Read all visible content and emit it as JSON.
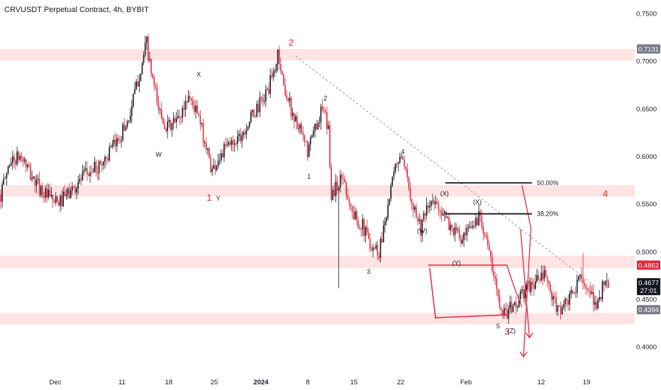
{
  "header": {
    "title": "CRVUSDT Perpetual Contract, 4h, BYBIT"
  },
  "colors": {
    "up": "#131722",
    "down": "#e0283a",
    "zone": "#fde3e4",
    "annotation": "#e0283a",
    "grid_text": "#131722"
  },
  "chart_data": {
    "type": "candlestick",
    "title": "CRVUSDT Perpetual Contract, 4h, BYBIT",
    "ylim": [
      0.37,
      0.757
    ],
    "y_ticks": [
      "0.7500",
      "0.7000",
      "0.6500",
      "0.6000",
      "0.5500",
      "0.5000",
      "0.4500",
      "0.4000"
    ],
    "y_tick_values": [
      0.75,
      0.7,
      0.65,
      0.6,
      0.55,
      0.5,
      0.45,
      0.4
    ],
    "x_ticks": [
      "Dec",
      "11",
      "18",
      "25",
      "2024",
      "8",
      "15",
      "22",
      "Feb",
      "12",
      "19"
    ],
    "price_path": [
      [
        0,
        0.56
      ],
      [
        6,
        0.595
      ],
      [
        14,
        0.6
      ],
      [
        22,
        0.575
      ],
      [
        30,
        0.56
      ],
      [
        38,
        0.55
      ],
      [
        48,
        0.565
      ],
      [
        56,
        0.58
      ],
      [
        66,
        0.59
      ],
      [
        76,
        0.61
      ],
      [
        86,
        0.64
      ],
      [
        92,
        0.68
      ],
      [
        96,
        0.705
      ],
      [
        98,
        0.72
      ],
      [
        100,
        0.695
      ],
      [
        106,
        0.65
      ],
      [
        112,
        0.63
      ],
      [
        120,
        0.64
      ],
      [
        126,
        0.665
      ],
      [
        132,
        0.645
      ],
      [
        138,
        0.61
      ],
      [
        142,
        0.585
      ],
      [
        146,
        0.598
      ],
      [
        152,
        0.61
      ],
      [
        162,
        0.625
      ],
      [
        170,
        0.645
      ],
      [
        178,
        0.665
      ],
      [
        184,
        0.69
      ],
      [
        186,
        0.71
      ],
      [
        190,
        0.675
      ],
      [
        196,
        0.645
      ],
      [
        202,
        0.622
      ],
      [
        206,
        0.605
      ],
      [
        212,
        0.635
      ],
      [
        216,
        0.65
      ],
      [
        220,
        0.628
      ],
      [
        222,
        0.56
      ],
      [
        230,
        0.58
      ],
      [
        236,
        0.54
      ],
      [
        242,
        0.53
      ],
      [
        248,
        0.51
      ],
      [
        254,
        0.5
      ],
      [
        258,
        0.535
      ],
      [
        262,
        0.565
      ],
      [
        266,
        0.595
      ],
      [
        268,
        0.6
      ],
      [
        272,
        0.58
      ],
      [
        278,
        0.545
      ],
      [
        282,
        0.525
      ],
      [
        288,
        0.55
      ],
      [
        294,
        0.55
      ],
      [
        300,
        0.53
      ],
      [
        306,
        0.52
      ],
      [
        310,
        0.51
      ],
      [
        316,
        0.525
      ],
      [
        322,
        0.54
      ],
      [
        326,
        0.515
      ],
      [
        330,
        0.48
      ],
      [
        334,
        0.455
      ],
      [
        338,
        0.435
      ],
      [
        346,
        0.445
      ],
      [
        352,
        0.46
      ],
      [
        360,
        0.47
      ],
      [
        366,
        0.475
      ],
      [
        370,
        0.45
      ],
      [
        374,
        0.44
      ],
      [
        380,
        0.445
      ],
      [
        386,
        0.46
      ],
      [
        390,
        0.48
      ],
      [
        394,
        0.455
      ],
      [
        400,
        0.445
      ],
      [
        406,
        0.47
      ],
      [
        408,
        0.468
      ]
    ],
    "spikes": [
      {
        "i": 227,
        "low": 0.462
      },
      {
        "i": 98,
        "high": 0.7225
      },
      {
        "i": 186,
        "high": 0.71
      },
      {
        "i": 268,
        "high": 0.604
      },
      {
        "i": 391,
        "high": 0.499
      }
    ],
    "zones": [
      {
        "y1": 0.701,
        "y2": 0.7131
      },
      {
        "y1": 0.558,
        "y2": 0.57
      },
      {
        "y1": 0.483,
        "y2": 0.496
      },
      {
        "y1": 0.424,
        "y2": 0.436
      }
    ],
    "price_tags": [
      {
        "value": "0.7131",
        "y": 0.7131,
        "bg": "#787b86"
      },
      {
        "value": "0.4862",
        "y": 0.4862,
        "bg": "#e0283a"
      },
      {
        "value": "0.4677",
        "sub": "27:01",
        "y": 0.4677,
        "bg": "#131722"
      },
      {
        "value": "0.4394",
        "y": 0.4394,
        "bg": "#787b86"
      }
    ],
    "fib_levels": [
      {
        "label": "50.00%",
        "y": 0.5725
      },
      {
        "label": "38.20%",
        "y": 0.54
      }
    ],
    "trendline": {
      "from": [
        0.7055,
        198
      ],
      "to": [
        0.463,
        400
      ]
    },
    "wave_labels": [
      {
        "text": "2",
        "i": 195,
        "y": 0.7165,
        "style": "red"
      },
      {
        "text": "1",
        "i": 140,
        "y": 0.554,
        "style": "red"
      },
      {
        "text": "3",
        "i": 340,
        "y": 0.413,
        "style": "red"
      },
      {
        "text": "4",
        "i": 406,
        "y": 0.558,
        "style": "red"
      },
      {
        "text": "X",
        "i": 133,
        "y": 0.684,
        "style": "black"
      },
      {
        "text": "W",
        "i": 106,
        "y": 0.6,
        "style": "black"
      },
      {
        "text": "Y",
        "i": 146,
        "y": 0.554,
        "style": "black"
      },
      {
        "text": "2",
        "i": 218,
        "y": 0.659,
        "style": "black"
      },
      {
        "text": "1",
        "i": 207,
        "y": 0.577,
        "style": "black"
      },
      {
        "text": "3",
        "i": 247,
        "y": 0.477,
        "style": "black"
      },
      {
        "text": "4",
        "i": 270,
        "y": 0.603,
        "style": "black"
      },
      {
        "text": "(X)",
        "i": 298,
        "y": 0.559,
        "style": "black"
      },
      {
        "text": "(W)",
        "i": 283,
        "y": 0.52,
        "style": "black"
      },
      {
        "text": "(X)",
        "i": 320,
        "y": 0.55,
        "style": "black"
      },
      {
        "text": "(Y)",
        "i": 306,
        "y": 0.486,
        "style": "black"
      },
      {
        "text": "5",
        "i": 334,
        "y": 0.42,
        "style": "black"
      },
      {
        "text": "(Z)",
        "i": 343,
        "y": 0.415,
        "style": "black"
      }
    ]
  }
}
